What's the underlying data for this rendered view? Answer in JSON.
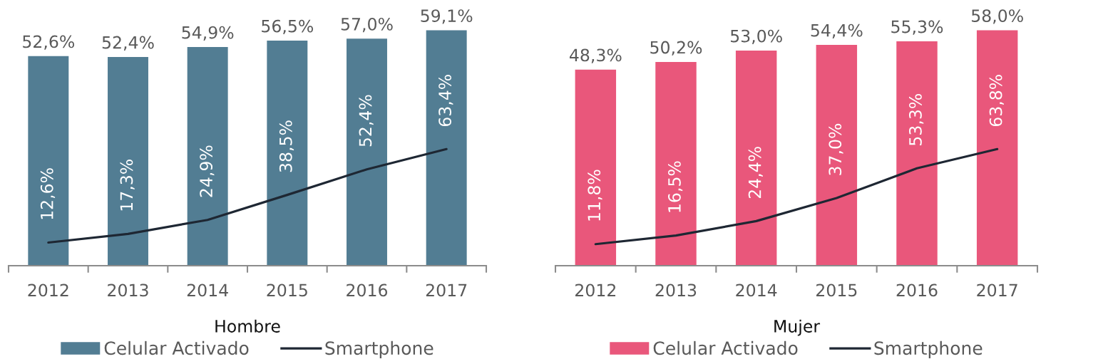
{
  "chart_data": [
    {
      "type": "bar",
      "xlabel": "Hombre",
      "categories": [
        "2012",
        "2013",
        "2014",
        "2015",
        "2016",
        "2017"
      ],
      "series": [
        {
          "name": "Celular Activado",
          "color": "#527d93",
          "values": [
            52.6,
            52.4,
            54.9,
            56.5,
            57.0,
            59.1
          ],
          "value_labels": [
            "52,6%",
            "52,4%",
            "54,9%",
            "56,5%",
            "57,0%",
            "59,1%"
          ]
        },
        {
          "name": "Smartphone",
          "type": "line",
          "axis": "y2",
          "color": "#1e2733",
          "values": [
            12.6,
            17.3,
            24.9,
            38.5,
            52.4,
            63.4
          ],
          "value_labels": [
            "12,6%",
            "17,3%",
            "24,9%",
            "38,5%",
            "52,4%",
            "63,4%"
          ]
        }
      ],
      "tick_labels": "x",
      "legend": "bottom"
    },
    {
      "type": "bar",
      "xlabel": "Mujer",
      "categories": [
        "2012",
        "2013",
        "2014",
        "2015",
        "2016",
        "2017"
      ],
      "series": [
        {
          "name": "Celular Activado",
          "color": "#e9577b",
          "values": [
            48.3,
            50.2,
            53.0,
            54.4,
            55.3,
            58.0
          ],
          "value_labels": [
            "48,3%",
            "50,2%",
            "53,0%",
            "54,4%",
            "55,3%",
            "58,0%"
          ]
        },
        {
          "name": "Smartphone",
          "type": "line",
          "axis": "y2",
          "color": "#1e2733",
          "values": [
            11.8,
            16.5,
            24.4,
            37.0,
            53.3,
            63.8
          ],
          "value_labels": [
            "11,8%",
            "16,5%",
            "24,4%",
            "37,0%",
            "53,3%",
            "63,8%"
          ]
        }
      ],
      "tick_labels": "x",
      "legend": "bottom"
    }
  ]
}
